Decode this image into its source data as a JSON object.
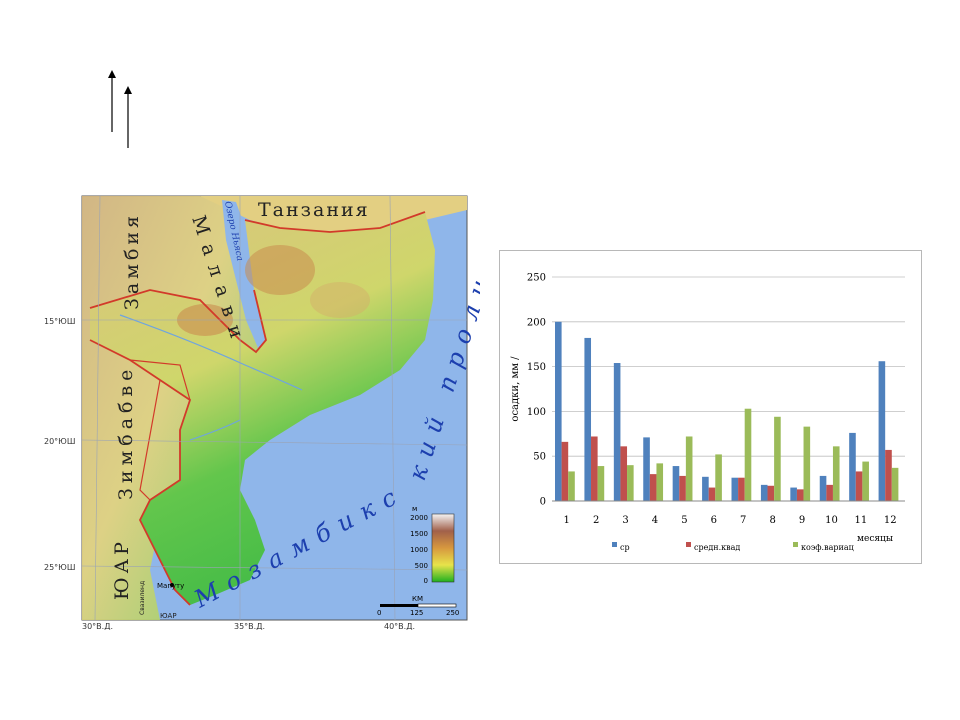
{
  "map": {
    "countries": {
      "tanzania": "Танзания",
      "zambia": "Замбия",
      "malawi": "Малави",
      "zimbabwe": "Зимбабве",
      "south_africa": "ЮАР",
      "swaziland": "Свазиленд",
      "south_africa_small": "ЮАР"
    },
    "water": {
      "lake": "Озеро Ньяса",
      "channel": "Мозамбикский пролив"
    },
    "city": "Мапуту",
    "lat_labels": [
      "15°ЮШ",
      "20°ЮШ",
      "25°ЮШ"
    ],
    "lon_labels": [
      "30°В.Д.",
      "35°В.Д.",
      "40°В.Д."
    ],
    "elevation_legend": {
      "unit": "м",
      "values": [
        "2000",
        "1500",
        "1000",
        "500",
        "0"
      ]
    },
    "scale_bar": {
      "unit": "КМ",
      "values": [
        "0",
        "125",
        "250"
      ]
    },
    "colors": {
      "sea": "#8fb6ea",
      "lowland": "#47c04a",
      "upland": "#d9c66a",
      "highland": "#c98c4f",
      "border": "#d23a2a"
    }
  },
  "chart_data": {
    "type": "bar",
    "categories": [
      "1",
      "2",
      "3",
      "4",
      "5",
      "6",
      "7",
      "8",
      "9",
      "10",
      "11",
      "12"
    ],
    "series": [
      {
        "name": "ср",
        "color": "#4f81bd",
        "values": [
          200,
          182,
          154,
          71,
          39,
          27,
          26,
          18,
          15,
          28,
          76,
          156
        ]
      },
      {
        "name": "средн.квад",
        "color": "#c0504d",
        "values": [
          66,
          72,
          61,
          30,
          28,
          15,
          26,
          17,
          13,
          18,
          33,
          57
        ]
      },
      {
        "name": "коэф.вариац",
        "color": "#9bbb59",
        "values": [
          33,
          39,
          40,
          42,
          72,
          52,
          103,
          94,
          83,
          61,
          44,
          37
        ]
      }
    ],
    "ylabel": "осадки, мм /",
    "xlabel": "месяцы",
    "ylim": [
      0,
      250
    ],
    "yticks": [
      "0",
      "50",
      "100",
      "150",
      "200",
      "250"
    ],
    "grid": true,
    "legend": "bottom"
  }
}
